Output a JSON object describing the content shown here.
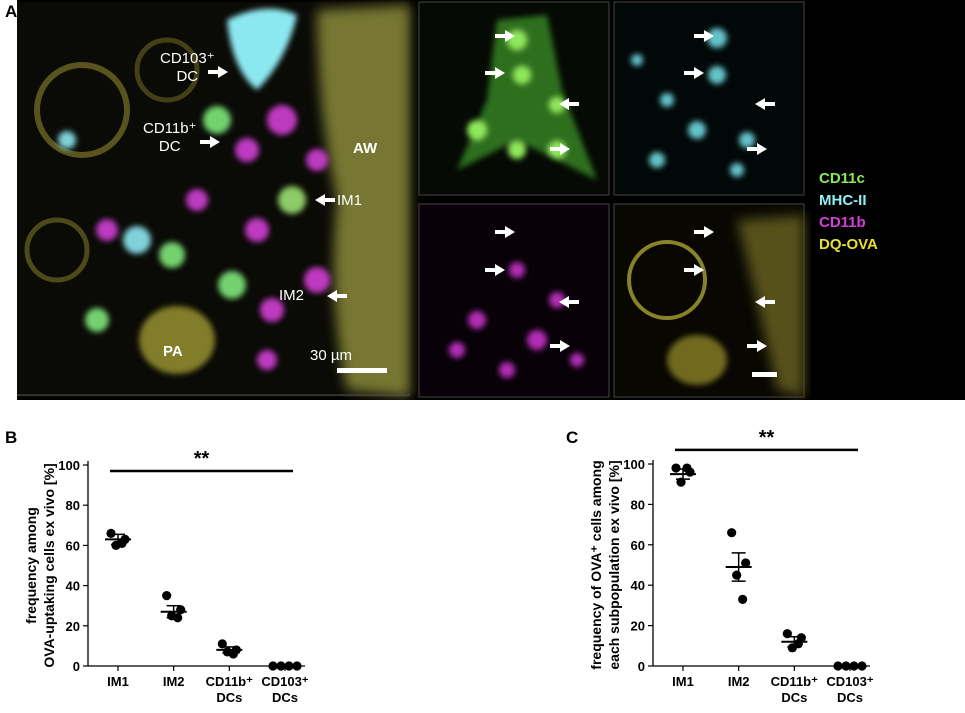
{
  "panels": {
    "a_letter": "A",
    "b_letter": "B",
    "c_letter": "C"
  },
  "microscopy": {
    "labels": {
      "cd103_line1": "CD103⁺",
      "cd103_line2": "DC",
      "cd11b_line1": "CD11b⁺",
      "cd11b_line2": "DC",
      "aw": "AW",
      "im1": "IM1",
      "im2": "IM2",
      "pa": "PA",
      "scale": "30 µm"
    },
    "legend": [
      {
        "label": "CD11c",
        "color": "#8ee85a"
      },
      {
        "label": "MHC-II",
        "color": "#8ff0f5"
      },
      {
        "label": "CD11b",
        "color": "#d33fd8"
      },
      {
        "label": "DQ-OVA",
        "color": "#e8e030"
      }
    ]
  },
  "chart_data": [
    {
      "type": "scatter",
      "categories": [
        "IM1",
        "IM2",
        "CD11b⁺ DCs",
        "CD103⁺ DCs"
      ],
      "tick_lines": [
        [
          "IM1"
        ],
        [
          "IM2"
        ],
        [
          "CD11b⁺",
          "DCs"
        ],
        [
          "CD103⁺",
          "DCs"
        ]
      ],
      "ylabel_lines": [
        "frequency among",
        "OVA-uptaking cells ex vivo [%]"
      ],
      "ylim": [
        0,
        100
      ],
      "yticks": [
        0,
        20,
        40,
        60,
        80,
        100
      ],
      "points": [
        [
          66,
          63,
          60,
          61
        ],
        [
          35,
          28,
          25,
          24
        ],
        [
          11,
          8,
          7,
          6
        ],
        [
          0,
          0,
          0,
          0
        ]
      ],
      "means": [
        63,
        27,
        8,
        0
      ],
      "errors": [
        2.5,
        3,
        1.5,
        0
      ],
      "significance": "**",
      "sig_from": 0,
      "sig_to": 3,
      "sig_y": 97
    },
    {
      "type": "scatter",
      "categories": [
        "IM1",
        "IM2",
        "CD11b⁺ DCs",
        "CD103⁺ DCs"
      ],
      "tick_lines": [
        [
          "IM1"
        ],
        [
          "IM2"
        ],
        [
          "CD11b⁺",
          "DCs"
        ],
        [
          "CD103⁺",
          "DCs"
        ]
      ],
      "ylabel_lines": [
        "frequency of OVA⁺ cells among",
        "each subpopulation ex vivo [%]"
      ],
      "ylim": [
        0,
        100
      ],
      "yticks": [
        0,
        20,
        40,
        60,
        80,
        100
      ],
      "points": [
        [
          98,
          96,
          91,
          98
        ],
        [
          66,
          51,
          45,
          33
        ],
        [
          16,
          14,
          9,
          11
        ],
        [
          0,
          0,
          0,
          0
        ]
      ],
      "means": [
        95,
        49,
        12,
        0
      ],
      "errors": [
        2.5,
        7,
        2.5,
        0
      ],
      "significance": "**",
      "sig_from": 0,
      "sig_to": 3,
      "sig_y": 107
    }
  ]
}
